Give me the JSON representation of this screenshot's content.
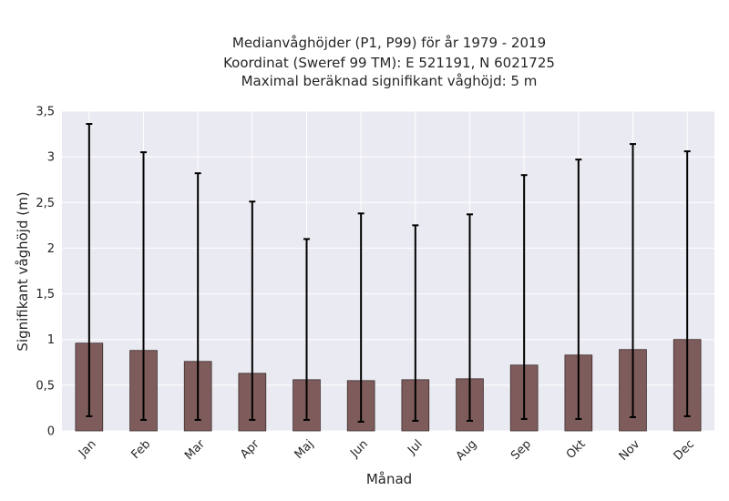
{
  "chart_data": {
    "type": "bar",
    "title_lines": [
      "Medianvåghöjder (P1, P99) för år 1979 - 2019",
      "Koordinat (Sweref 99 TM): E 521191, N 6021725",
      "Maximal beräknad signifikant våghöjd: 5 m"
    ],
    "xlabel": "Månad",
    "ylabel": "Signifikant våghöjd (m)",
    "categories": [
      "Jan",
      "Feb",
      "Mar",
      "Apr",
      "Maj",
      "Jun",
      "Jul",
      "Aug",
      "Sep",
      "Okt",
      "Nov",
      "Dec"
    ],
    "series": [
      {
        "values": [
          0.96,
          0.88,
          0.76,
          0.63,
          0.56,
          0.55,
          0.56,
          0.57,
          0.72,
          0.83,
          0.89,
          1.0
        ],
        "p1": [
          0.16,
          0.12,
          0.12,
          0.12,
          0.12,
          0.1,
          0.11,
          0.11,
          0.13,
          0.13,
          0.15,
          0.16
        ],
        "p99": [
          3.36,
          3.05,
          2.82,
          2.51,
          2.1,
          2.38,
          2.25,
          2.37,
          2.8,
          2.97,
          3.14,
          3.06
        ]
      }
    ],
    "ylim": [
      0,
      3.5
    ],
    "yticks": [
      0,
      0.5,
      1,
      1.5,
      2,
      2.5,
      3,
      3.5
    ],
    "ytick_labels": [
      "0",
      "0,5",
      "1",
      "1,5",
      "2",
      "2,5",
      "3",
      "3,5"
    ],
    "grid": true,
    "colors": {
      "bar": "#7f5c5c",
      "bar_edge": "#3a2a2a",
      "error_bar": "#000000",
      "plot_background": "#eaeaf2",
      "grid": "#ffffff"
    }
  }
}
